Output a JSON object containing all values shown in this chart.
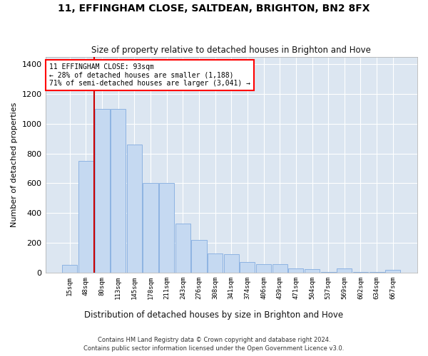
{
  "title": "11, EFFINGHAM CLOSE, SALTDEAN, BRIGHTON, BN2 8FX",
  "subtitle": "Size of property relative to detached houses in Brighton and Hove",
  "xlabel": "Distribution of detached houses by size in Brighton and Hove",
  "ylabel": "Number of detached properties",
  "footer1": "Contains HM Land Registry data © Crown copyright and database right 2024.",
  "footer2": "Contains public sector information licensed under the Open Government Licence v3.0.",
  "annotation_line1": "11 EFFINGHAM CLOSE: 93sqm",
  "annotation_line2": "← 28% of detached houses are smaller (1,188)",
  "annotation_line3": "71% of semi-detached houses are larger (3,041) →",
  "bar_labels": [
    "15sqm",
    "48sqm",
    "80sqm",
    "113sqm",
    "145sqm",
    "178sqm",
    "211sqm",
    "243sqm",
    "276sqm",
    "308sqm",
    "341sqm",
    "374sqm",
    "406sqm",
    "439sqm",
    "471sqm",
    "504sqm",
    "537sqm",
    "569sqm",
    "602sqm",
    "634sqm",
    "667sqm"
  ],
  "bar_values": [
    50,
    748,
    1100,
    1100,
    860,
    600,
    600,
    330,
    220,
    130,
    125,
    70,
    55,
    55,
    30,
    22,
    5,
    30,
    5,
    5,
    20
  ],
  "bar_color": "#c5d9f1",
  "bar_edge_color": "#8db3e2",
  "vline_color": "#cc0000",
  "vline_x_idx": 1.5,
  "axes_bg_color": "#dce6f1",
  "grid_color": "#ffffff",
  "background_color": "#ffffff",
  "ylim": [
    0,
    1450
  ],
  "yticks": [
    0,
    200,
    400,
    600,
    800,
    1000,
    1200,
    1400
  ]
}
